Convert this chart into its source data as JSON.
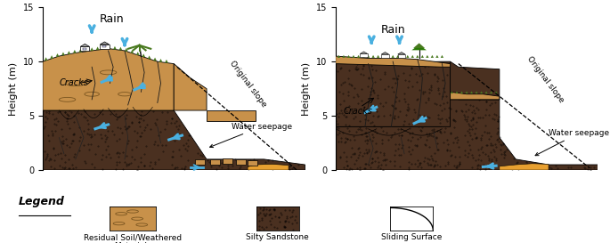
{
  "bg_color": "#ffffff",
  "soil_color": "#c8914a",
  "sandstone_color": "#4a3020",
  "grass_color": "#4a7a20",
  "water_color": "#4ab0e0",
  "orange_deposit": "#e8a030",
  "crack_color": "#1a1a1a",
  "title_left": "Rain",
  "title_right": "Rain",
  "ylabel": "Height (m)",
  "yticks": [
    0,
    5,
    10,
    15
  ],
  "legend_soil": "Residual Soil/Weathered\nMaterials",
  "legend_sand": "Silty Sandstone",
  "legend_slide": "Sliding Surface",
  "legend_title": "Legend"
}
